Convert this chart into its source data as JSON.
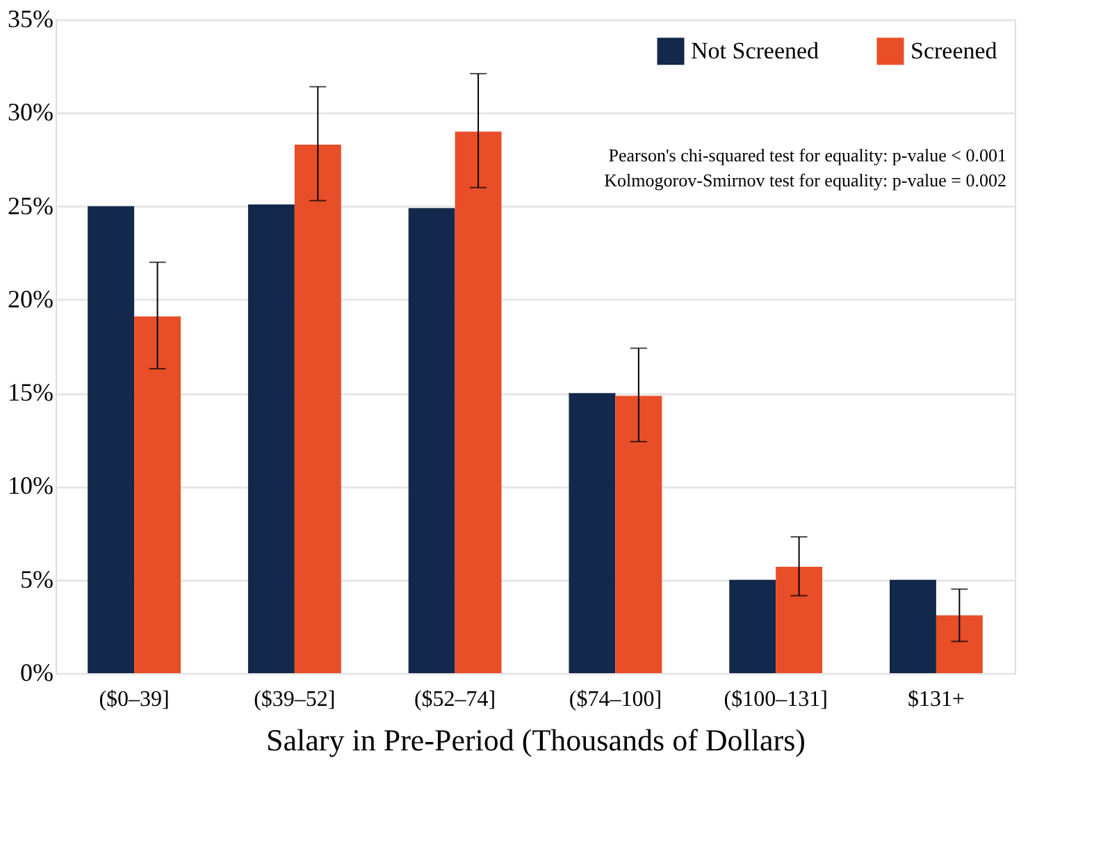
{
  "chart_data": {
    "type": "bar",
    "xlabel": "Salary in Pre-Period (Thousands of Dollars)",
    "categories": [
      "($0–39]",
      "($39–52]",
      "($52–74]",
      "($74–100]",
      "($100–131]",
      "$131+"
    ],
    "series": [
      {
        "name": "Not Screened",
        "color": "#14284b",
        "values": [
          25.0,
          25.1,
          24.9,
          15.0,
          5.0,
          5.0
        ]
      },
      {
        "name": "Screened",
        "color": "#e84e28",
        "values": [
          19.1,
          28.3,
          29.0,
          14.85,
          5.7,
          3.1
        ],
        "errors": [
          [
            16.3,
            22.0
          ],
          [
            25.3,
            31.4
          ],
          [
            26.0,
            32.1
          ],
          [
            12.4,
            17.4
          ],
          [
            4.15,
            7.3
          ],
          [
            1.7,
            4.5
          ]
        ]
      }
    ],
    "ylim": [
      0,
      35
    ],
    "yticks": [
      {
        "value": 0,
        "label": "0%"
      },
      {
        "value": 5,
        "label": "5%"
      },
      {
        "value": 10,
        "label": "10%"
      },
      {
        "value": 15,
        "label": "15%"
      },
      {
        "value": 20,
        "label": "20%"
      },
      {
        "value": 25,
        "label": "25%"
      },
      {
        "value": 30,
        "label": "30%"
      },
      {
        "value": 35,
        "label": "35%"
      }
    ],
    "grid": "y",
    "legend": "top right",
    "annotations": [
      "Pearson's chi-squared test for equality: p-value < 0.001",
      "Kolmogorov-Smirnov test for equality: p-value = 0.002"
    ]
  }
}
